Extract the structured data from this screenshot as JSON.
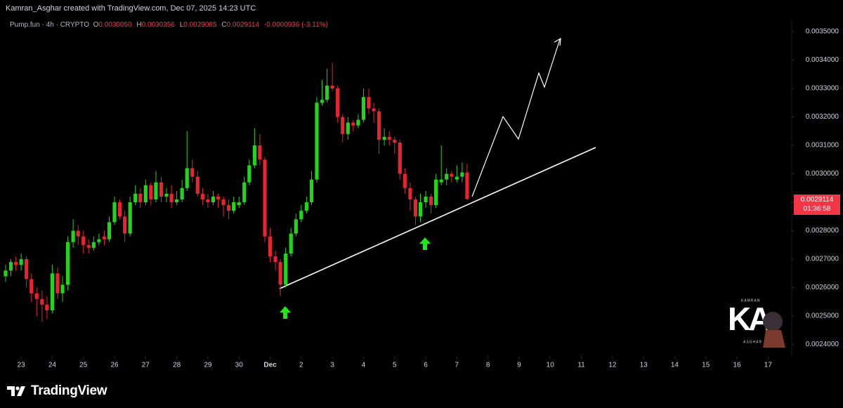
{
  "chart_data": {
    "type": "candlestick",
    "attribution": "Kamran_Asghar created with TradingView.com, Dec 07, 2025 14:23 UTC",
    "legend": {
      "symbol": "Pump.fun · 4h · CRYPTO",
      "open_label": "O",
      "open": "0.0030050",
      "high_label": "H",
      "high": "0.0030356",
      "low_label": "L",
      "low": "0.0029085",
      "close_label": "C",
      "close": "0.0029114",
      "change": "-0.0000936 (-3.11%)"
    },
    "price_label": {
      "price": "0.0029114",
      "countdown": "01:36:58"
    },
    "watermark": {
      "top": "KAMRAN",
      "mark": "KA",
      "bottom": "ASGHAR"
    },
    "brand": "TradingView",
    "up_color": "#22d41a",
    "down_color": "#e8242f",
    "x": [
      22.5,
      22.67,
      22.83,
      23,
      23.17,
      23.33,
      23.5,
      23.67,
      23.83,
      24,
      24.17,
      24.33,
      24.5,
      24.67,
      24.83,
      25,
      25.17,
      25.33,
      25.5,
      25.67,
      25.83,
      26,
      26.17,
      26.33,
      26.5,
      26.67,
      26.83,
      27,
      27.17,
      27.33,
      27.5,
      27.67,
      27.83,
      28,
      28.17,
      28.33,
      28.5,
      28.67,
      28.83,
      29,
      29.17,
      29.33,
      29.5,
      29.67,
      29.83,
      30,
      30.17,
      30.33,
      30.5,
      30.67,
      30.83,
      31,
      31.17,
      31.33,
      31.5,
      31.67,
      31.83,
      32,
      32.17,
      32.33,
      32.5,
      32.67,
      32.83,
      33,
      33.17,
      33.33,
      33.5,
      33.67,
      33.83,
      34,
      34.17,
      34.33,
      34.5,
      34.67,
      34.83,
      35,
      35.17,
      35.33,
      35.5,
      35.67,
      35.83,
      36,
      36.17,
      36.33,
      36.5,
      36.67,
      36.83,
      37,
      37.17,
      37.33
    ],
    "open": [
      0.00264,
      0.00266,
      0.00269,
      0.00268,
      0.0027,
      0.00263,
      0.00258,
      0.00256,
      0.00254,
      0.00252,
      0.00265,
      0.00258,
      0.00261,
      0.00276,
      0.0028,
      0.00278,
      0.00275,
      0.00274,
      0.00276,
      0.00278,
      0.00277,
      0.00283,
      0.0029,
      0.00285,
      0.00279,
      0.0029,
      0.00293,
      0.0029,
      0.00296,
      0.00291,
      0.00297,
      0.00292,
      0.00293,
      0.0029,
      0.00291,
      0.00295,
      0.00302,
      0.00299,
      0.00293,
      0.00291,
      0.0029,
      0.00292,
      0.00291,
      0.00289,
      0.00287,
      0.00289,
      0.0029,
      0.00297,
      0.00303,
      0.0031,
      0.00305,
      0.00278,
      0.00271,
      0.00269,
      0.00261,
      0.00272,
      0.00279,
      0.00284,
      0.00287,
      0.0029,
      0.00298,
      0.00325,
      0.00326,
      0.00331,
      0.0033,
      0.0032,
      0.00314,
      0.00318,
      0.00317,
      0.00319,
      0.00327,
      0.00323,
      0.00322,
      0.00312,
      0.00313,
      0.00312,
      0.00311,
      0.003,
      0.00295,
      0.00291,
      0.00285,
      0.0029,
      0.00292,
      0.00289,
      0.00297,
      0.00298,
      0.003,
      0.00298,
      0.00299,
      0.003005
    ],
    "high": [
      0.00268,
      0.0027,
      0.00271,
      0.00272,
      0.00271,
      0.00265,
      0.0026,
      0.00259,
      0.00257,
      0.00268,
      0.00267,
      0.00264,
      0.00278,
      0.00284,
      0.00282,
      0.0028,
      0.00277,
      0.00278,
      0.00279,
      0.0028,
      0.00285,
      0.00292,
      0.00291,
      0.00287,
      0.00292,
      0.00296,
      0.00295,
      0.00298,
      0.00297,
      0.00301,
      0.00299,
      0.00295,
      0.00296,
      0.00294,
      0.00298,
      0.00315,
      0.00305,
      0.00301,
      0.00295,
      0.00293,
      0.00294,
      0.00293,
      0.00292,
      0.00291,
      0.00292,
      0.00292,
      0.00299,
      0.00305,
      0.00316,
      0.00314,
      0.00306,
      0.00281,
      0.00273,
      0.0027,
      0.00274,
      0.00281,
      0.00286,
      0.00289,
      0.00292,
      0.00301,
      0.00327,
      0.00333,
      0.00337,
      0.00339,
      0.00331,
      0.00321,
      0.0032,
      0.00319,
      0.00321,
      0.0033,
      0.0033,
      0.00325,
      0.00323,
      0.00316,
      0.00315,
      0.00313,
      0.00312,
      0.00302,
      0.00297,
      0.00292,
      0.00293,
      0.00294,
      0.00293,
      0.003,
      0.0031,
      0.00302,
      0.00301,
      0.00303,
      0.00304,
      0.0030356
    ],
    "low": [
      0.00262,
      0.00264,
      0.00266,
      0.00266,
      0.0026,
      0.00255,
      0.0025,
      0.00248,
      0.00249,
      0.00251,
      0.00256,
      0.00255,
      0.00259,
      0.00274,
      0.00275,
      0.00272,
      0.00272,
      0.00273,
      0.00275,
      0.00275,
      0.00276,
      0.00282,
      0.00284,
      0.00276,
      0.00278,
      0.00289,
      0.00288,
      0.00289,
      0.00289,
      0.0029,
      0.0029,
      0.0029,
      0.00288,
      0.00289,
      0.0029,
      0.00294,
      0.00297,
      0.00292,
      0.00289,
      0.00288,
      0.00289,
      0.00288,
      0.00285,
      0.00284,
      0.00286,
      0.00288,
      0.00289,
      0.00296,
      0.00302,
      0.00303,
      0.00276,
      0.00269,
      0.00266,
      0.00257,
      0.0026,
      0.00271,
      0.00278,
      0.00283,
      0.00286,
      0.00289,
      0.00297,
      0.00324,
      0.00325,
      0.00329,
      0.00318,
      0.00311,
      0.00312,
      0.00315,
      0.00316,
      0.00318,
      0.00321,
      0.00318,
      0.00307,
      0.0031,
      0.0031,
      0.00307,
      0.00298,
      0.00293,
      0.00287,
      0.00282,
      0.00283,
      0.00288,
      0.00286,
      0.00288,
      0.00296,
      0.00296,
      0.00297,
      0.00297,
      0.00297,
      0.0029085
    ],
    "close": [
      0.00266,
      0.00269,
      0.00268,
      0.0027,
      0.00263,
      0.00258,
      0.00256,
      0.00254,
      0.00252,
      0.00265,
      0.00258,
      0.00261,
      0.00276,
      0.0028,
      0.00278,
      0.00275,
      0.00274,
      0.00276,
      0.00277,
      0.00277,
      0.00283,
      0.0029,
      0.00285,
      0.00279,
      0.0029,
      0.00293,
      0.0029,
      0.00296,
      0.00291,
      0.00297,
      0.00292,
      0.00293,
      0.0029,
      0.00291,
      0.00295,
      0.00302,
      0.00299,
      0.00293,
      0.00291,
      0.0029,
      0.00292,
      0.00291,
      0.00289,
      0.00287,
      0.0029,
      0.0029,
      0.00297,
      0.00303,
      0.0031,
      0.00305,
      0.00278,
      0.00271,
      0.00269,
      0.00261,
      0.00272,
      0.00279,
      0.00284,
      0.00287,
      0.0029,
      0.00298,
      0.00325,
      0.00326,
      0.00331,
      0.0033,
      0.0032,
      0.00314,
      0.00318,
      0.00317,
      0.00319,
      0.00327,
      0.00323,
      0.00322,
      0.00312,
      0.00313,
      0.00312,
      0.00311,
      0.003,
      0.00295,
      0.00291,
      0.00285,
      0.0029,
      0.00292,
      0.00289,
      0.00298,
      0.00298,
      0.003,
      0.00299,
      0.00299,
      0.003005,
      0.0029114
    ],
    "xlim": [
      22.32,
      47.76
    ],
    "ylim": [
      0.002357,
      0.003542
    ],
    "xticks": [
      {
        "value": 23,
        "label": "23"
      },
      {
        "value": 24,
        "label": "24"
      },
      {
        "value": 25,
        "label": "25"
      },
      {
        "value": 26,
        "label": "26"
      },
      {
        "value": 27,
        "label": "27"
      },
      {
        "value": 28,
        "label": "28"
      },
      {
        "value": 29,
        "label": "29"
      },
      {
        "value": 30,
        "label": "30"
      },
      {
        "value": 31,
        "label": "Dec"
      },
      {
        "value": 32,
        "label": "2"
      },
      {
        "value": 33,
        "label": "3"
      },
      {
        "value": 34,
        "label": "4"
      },
      {
        "value": 35,
        "label": "5"
      },
      {
        "value": 36,
        "label": "6"
      },
      {
        "value": 37,
        "label": "7"
      },
      {
        "value": 38,
        "label": "8"
      },
      {
        "value": 39,
        "label": "9"
      },
      {
        "value": 40,
        "label": "10"
      },
      {
        "value": 41,
        "label": "11"
      },
      {
        "value": 42,
        "label": "12"
      },
      {
        "value": 43,
        "label": "13"
      },
      {
        "value": 44,
        "label": "14"
      },
      {
        "value": 45,
        "label": "15"
      },
      {
        "value": 46,
        "label": "16"
      },
      {
        "value": 47,
        "label": "17"
      }
    ],
    "yticks": [
      {
        "value": 0.0024,
        "label": "0.0024000"
      },
      {
        "value": 0.0025,
        "label": "0.0025000"
      },
      {
        "value": 0.0026,
        "label": "0.0026000"
      },
      {
        "value": 0.0027,
        "label": "0.0027000"
      },
      {
        "value": 0.0028,
        "label": "0.0028000"
      },
      {
        "value": 0.0029,
        "label": "0.0029000"
      },
      {
        "value": 0.003,
        "label": "0.0030000"
      },
      {
        "value": 0.0031,
        "label": "0.0031000"
      },
      {
        "value": 0.0032,
        "label": "0.0032000"
      },
      {
        "value": 0.0033,
        "label": "0.0033000"
      },
      {
        "value": 0.0034,
        "label": "0.0034000"
      },
      {
        "value": 0.0035,
        "label": "0.0035000"
      }
    ],
    "grid": false
  }
}
